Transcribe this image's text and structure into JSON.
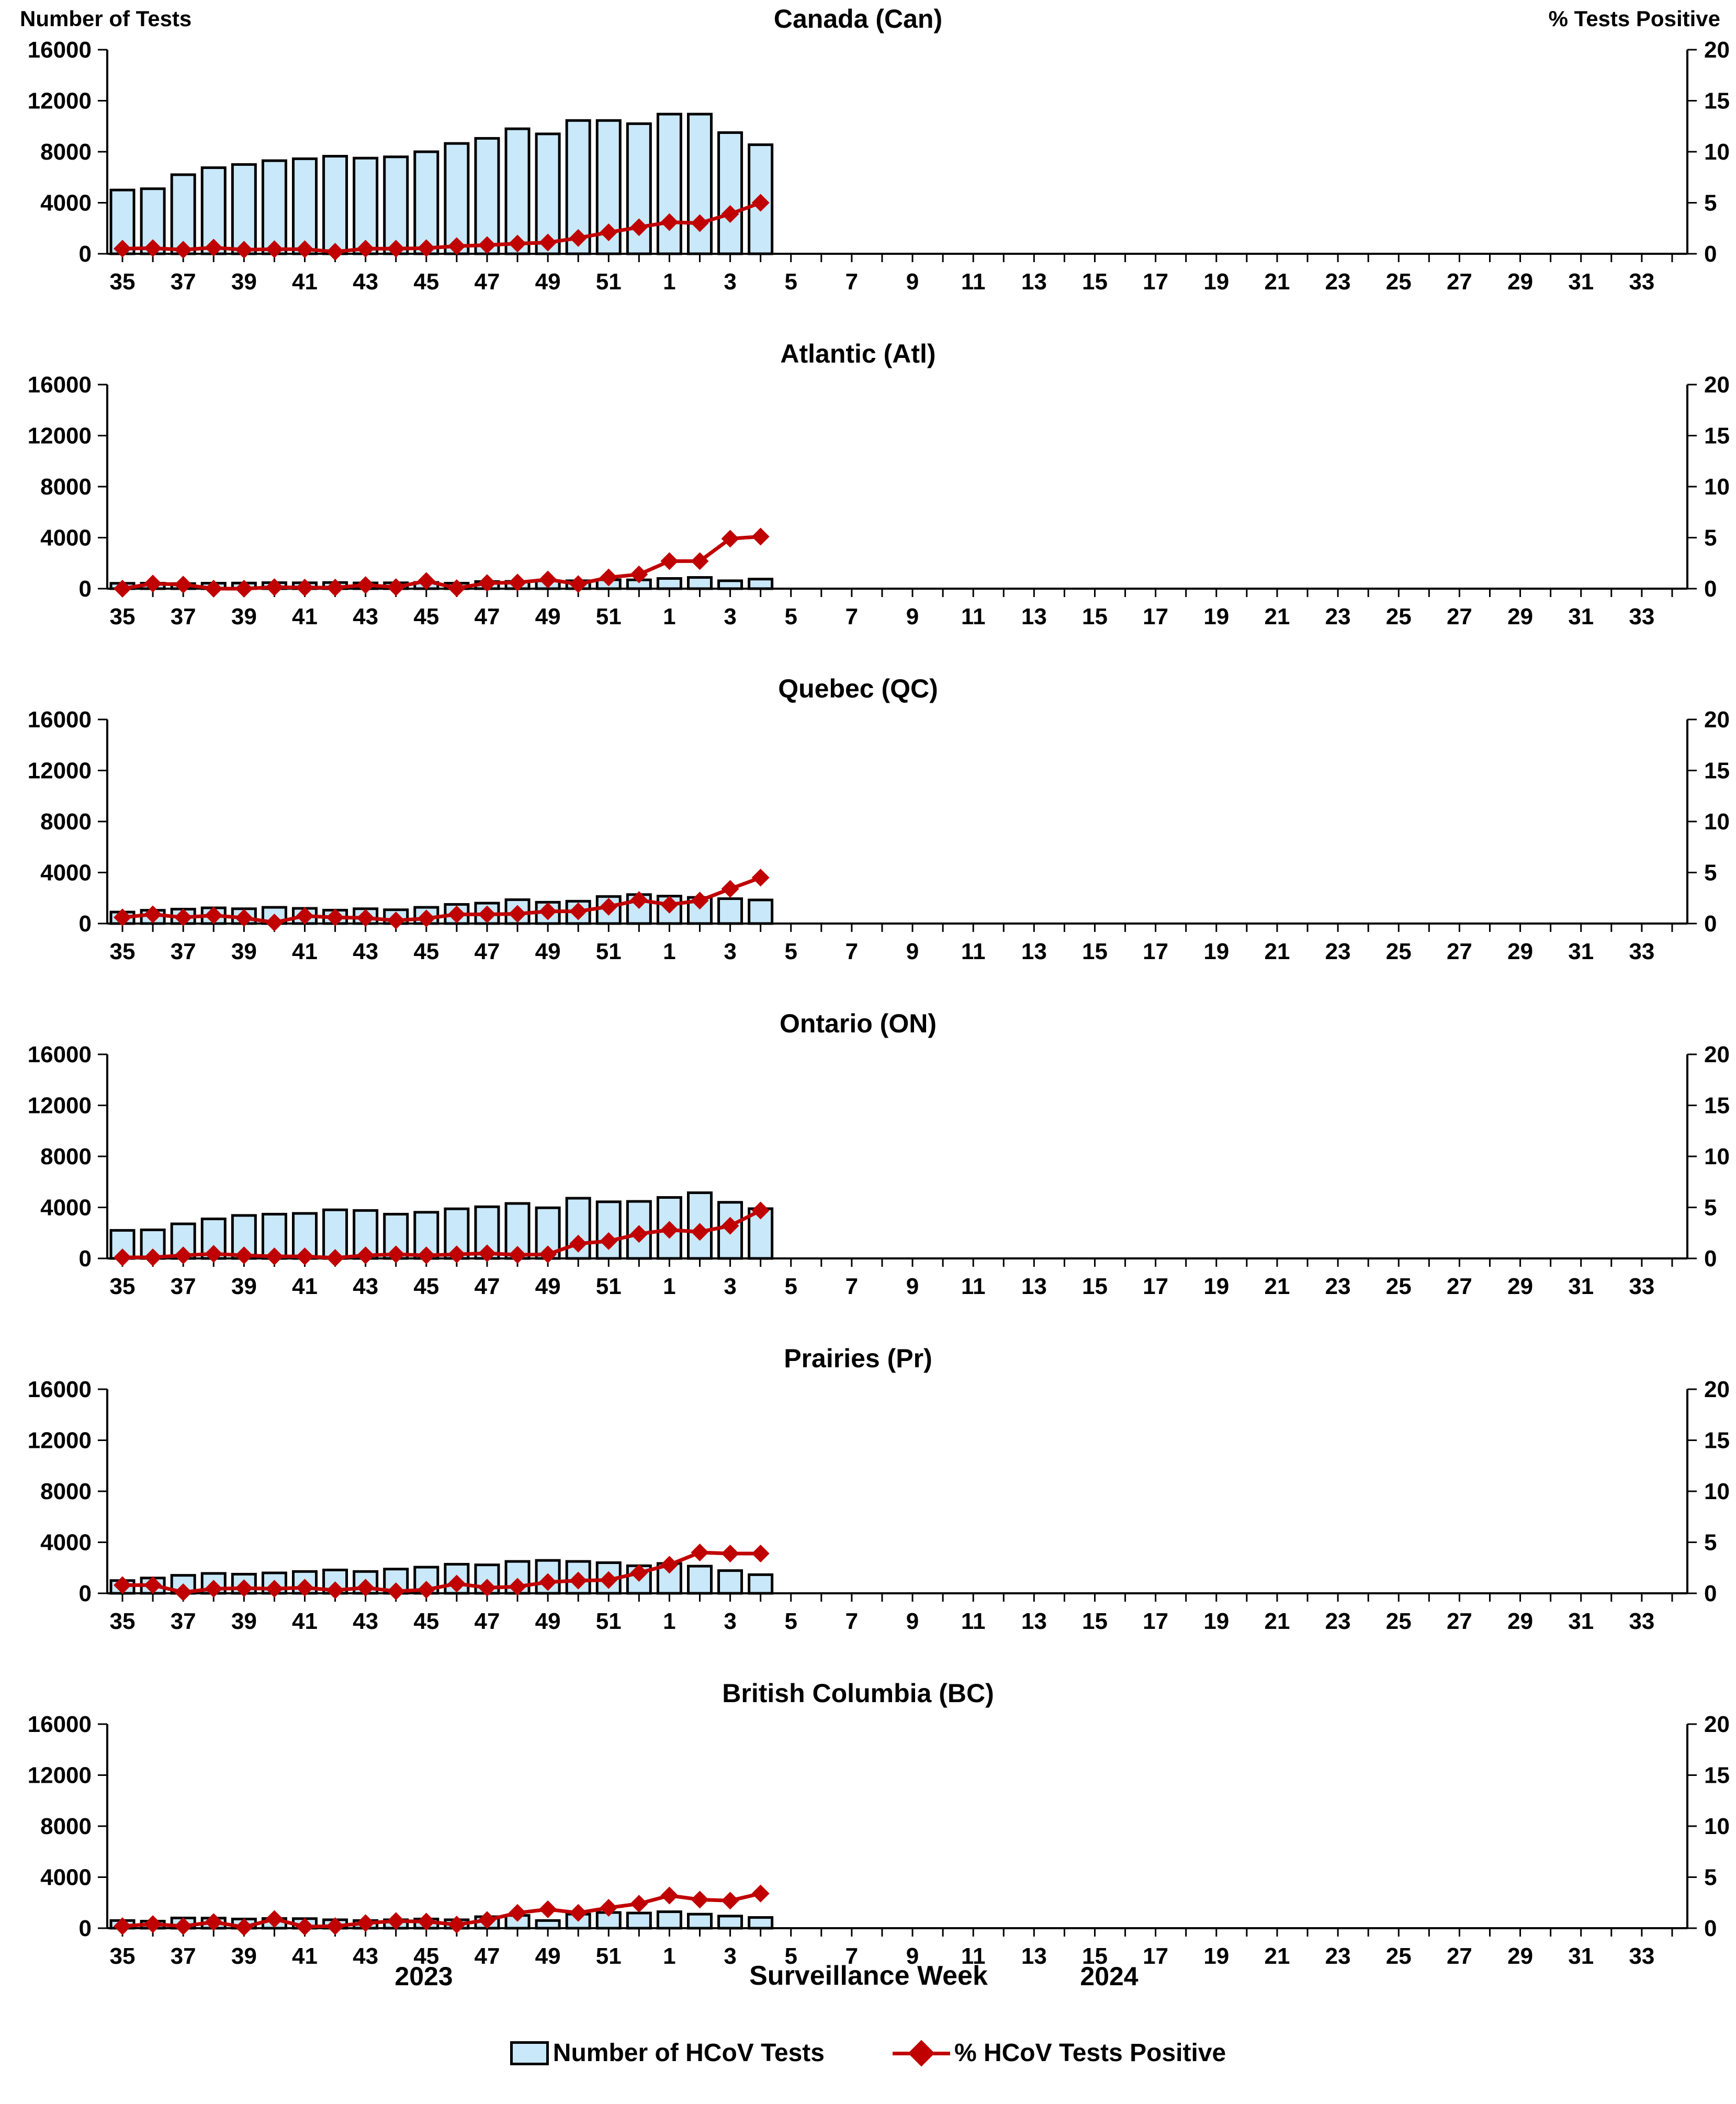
{
  "figure": {
    "left_axis_title": "Number of Tests",
    "right_axis_title": "% Tests Positive",
    "x_axis_title": "Surveillance Week",
    "year_left": "2023",
    "year_right": "2024"
  },
  "legend": {
    "bars_label": "Number of HCoV Tests",
    "line_label": "% HCoV Tests Positive"
  },
  "colors": {
    "bar_fill": "#C9E8F9",
    "bar_stroke": "#000000",
    "line": "#C00000",
    "text": "#000000",
    "background": "#FFFFFF"
  },
  "axes": {
    "left_ticks": [
      "16000",
      "12000",
      "8000",
      "4000",
      "0"
    ],
    "right_ticks": [
      "20",
      "15",
      "10",
      "5",
      "0"
    ],
    "left_max": 16000,
    "right_max": 20,
    "x_tick_labels": [
      "35",
      "37",
      "39",
      "41",
      "43",
      "45",
      "47",
      "49",
      "51",
      "1",
      "3",
      "5",
      "7",
      "9",
      "11",
      "13",
      "15",
      "17",
      "19",
      "21",
      "23",
      "25",
      "27",
      "29",
      "31",
      "33"
    ],
    "total_week_slots": 52
  },
  "weeks_with_data": [
    "35",
    "36",
    "37",
    "38",
    "39",
    "40",
    "41",
    "42",
    "43",
    "44",
    "45",
    "46",
    "47",
    "48",
    "49",
    "50",
    "51",
    "52",
    "1",
    "2",
    "3",
    "4"
  ],
  "chart_data": [
    {
      "type": "bar+line",
      "title": "Canada (Can)",
      "categories": [
        "35",
        "36",
        "37",
        "38",
        "39",
        "40",
        "41",
        "42",
        "43",
        "44",
        "45",
        "46",
        "47",
        "48",
        "49",
        "50",
        "51",
        "52",
        "1",
        "2",
        "3",
        "4"
      ],
      "series": [
        {
          "name": "Number of HCoV Tests",
          "axis": "left",
          "values": [
            5000,
            5100,
            6200,
            6750,
            7000,
            7300,
            7450,
            7650,
            7500,
            7600,
            8000,
            8650,
            9050,
            9800,
            9400,
            10450,
            10450,
            10200,
            10950,
            10950,
            9500,
            8550
          ]
        },
        {
          "name": "% HCoV Tests Positive",
          "axis": "right",
          "values": [
            0.5,
            0.55,
            0.4,
            0.6,
            0.4,
            0.45,
            0.45,
            0.2,
            0.5,
            0.5,
            0.55,
            0.75,
            0.85,
            1.0,
            1.1,
            1.55,
            2.1,
            2.6,
            3.1,
            3.0,
            3.9,
            5.0
          ]
        }
      ],
      "ylim_left": [
        0,
        16000
      ],
      "ylim_right": [
        0,
        20
      ]
    },
    {
      "type": "bar+line",
      "title": "Atlantic (Atl)",
      "categories": [
        "35",
        "36",
        "37",
        "38",
        "39",
        "40",
        "41",
        "42",
        "43",
        "44",
        "45",
        "46",
        "47",
        "48",
        "49",
        "50",
        "51",
        "52",
        "1",
        "2",
        "3",
        "4"
      ],
      "series": [
        {
          "name": "Number of HCoV Tests",
          "axis": "left",
          "values": [
            420,
            430,
            400,
            430,
            440,
            470,
            460,
            480,
            450,
            460,
            490,
            430,
            560,
            570,
            610,
            620,
            700,
            690,
            800,
            880,
            620,
            750
          ]
        },
        {
          "name": "% HCoV Tests Positive",
          "axis": "right",
          "values": [
            0.0,
            0.5,
            0.4,
            0.0,
            0.0,
            0.15,
            0.1,
            0.1,
            0.35,
            0.15,
            0.75,
            0.05,
            0.55,
            0.6,
            0.9,
            0.45,
            1.1,
            1.4,
            2.7,
            2.7,
            4.9,
            5.1
          ]
        }
      ],
      "ylim_left": [
        0,
        16000
      ],
      "ylim_right": [
        0,
        20
      ]
    },
    {
      "type": "bar+line",
      "title": "Quebec (QC)",
      "categories": [
        "35",
        "36",
        "37",
        "38",
        "39",
        "40",
        "41",
        "42",
        "43",
        "44",
        "45",
        "46",
        "47",
        "48",
        "49",
        "50",
        "51",
        "52",
        "1",
        "2",
        "3",
        "4"
      ],
      "series": [
        {
          "name": "Number of HCoV Tests",
          "axis": "left",
          "values": [
            900,
            1040,
            1130,
            1230,
            1160,
            1270,
            1190,
            1050,
            1160,
            1080,
            1270,
            1500,
            1600,
            1870,
            1670,
            1750,
            2120,
            2270,
            2150,
            2050,
            1950,
            1850
          ]
        },
        {
          "name": "% HCoV Tests Positive",
          "axis": "right",
          "values": [
            0.6,
            0.9,
            0.6,
            0.8,
            0.55,
            0.1,
            0.75,
            0.6,
            0.55,
            0.3,
            0.5,
            0.9,
            0.9,
            0.95,
            1.2,
            1.2,
            1.65,
            2.3,
            1.85,
            2.25,
            3.4,
            4.5
          ]
        }
      ],
      "ylim_left": [
        0,
        16000
      ],
      "ylim_right": [
        0,
        20
      ]
    },
    {
      "type": "bar+line",
      "title": "Ontario (ON)",
      "categories": [
        "35",
        "36",
        "37",
        "38",
        "39",
        "40",
        "41",
        "42",
        "43",
        "44",
        "45",
        "46",
        "47",
        "48",
        "49",
        "50",
        "51",
        "52",
        "1",
        "2",
        "3",
        "4"
      ],
      "series": [
        {
          "name": "Number of HCoV Tests",
          "axis": "left",
          "values": [
            2200,
            2240,
            2710,
            3100,
            3370,
            3470,
            3530,
            3810,
            3760,
            3470,
            3620,
            3890,
            4050,
            4310,
            3970,
            4720,
            4440,
            4470,
            4780,
            5150,
            4400,
            3900
          ]
        },
        {
          "name": "% HCoV Tests Positive",
          "axis": "right",
          "values": [
            0.1,
            0.1,
            0.3,
            0.45,
            0.3,
            0.2,
            0.2,
            0.05,
            0.3,
            0.4,
            0.3,
            0.4,
            0.5,
            0.35,
            0.4,
            1.45,
            1.7,
            2.4,
            2.8,
            2.6,
            3.2,
            4.7
          ]
        }
      ],
      "ylim_left": [
        0,
        16000
      ],
      "ylim_right": [
        0,
        20
      ]
    },
    {
      "type": "bar+line",
      "title": "Prairies (Pr)",
      "categories": [
        "35",
        "36",
        "37",
        "38",
        "39",
        "40",
        "41",
        "42",
        "43",
        "44",
        "45",
        "46",
        "47",
        "48",
        "49",
        "50",
        "51",
        "52",
        "1",
        "2",
        "3",
        "4"
      ],
      "series": [
        {
          "name": "Number of HCoV Tests",
          "axis": "left",
          "values": [
            1000,
            1200,
            1410,
            1560,
            1500,
            1600,
            1710,
            1830,
            1710,
            1900,
            2050,
            2280,
            2230,
            2500,
            2580,
            2500,
            2400,
            2160,
            2340,
            2130,
            1780,
            1460
          ]
        },
        {
          "name": "% HCoV Tests Positive",
          "axis": "right",
          "values": [
            0.8,
            0.8,
            0.1,
            0.45,
            0.5,
            0.45,
            0.55,
            0.3,
            0.55,
            0.2,
            0.35,
            0.95,
            0.55,
            0.65,
            1.1,
            1.25,
            1.3,
            2.0,
            2.8,
            4.0,
            3.9,
            3.9
          ]
        }
      ],
      "ylim_left": [
        0,
        16000
      ],
      "ylim_right": [
        0,
        20
      ]
    },
    {
      "type": "bar+line",
      "title": "British Columbia (BC)",
      "categories": [
        "35",
        "36",
        "37",
        "38",
        "39",
        "40",
        "41",
        "42",
        "43",
        "44",
        "45",
        "46",
        "47",
        "48",
        "49",
        "50",
        "51",
        "52",
        "1",
        "2",
        "3",
        "4"
      ],
      "series": [
        {
          "name": "Number of HCoV Tests",
          "axis": "left",
          "values": [
            600,
            550,
            800,
            790,
            720,
            760,
            750,
            660,
            600,
            660,
            720,
            660,
            900,
            1000,
            600,
            1100,
            1230,
            1190,
            1290,
            1100,
            950,
            840
          ]
        },
        {
          "name": "% HCoV Tests Positive",
          "axis": "right",
          "values": [
            0.2,
            0.4,
            0.2,
            0.6,
            0.1,
            0.9,
            0.15,
            0.2,
            0.5,
            0.7,
            0.65,
            0.35,
            0.8,
            1.5,
            1.85,
            1.5,
            2.0,
            2.4,
            3.2,
            2.8,
            2.7,
            3.4
          ]
        }
      ],
      "ylim_left": [
        0,
        16000
      ],
      "ylim_right": [
        0,
        20
      ]
    }
  ]
}
